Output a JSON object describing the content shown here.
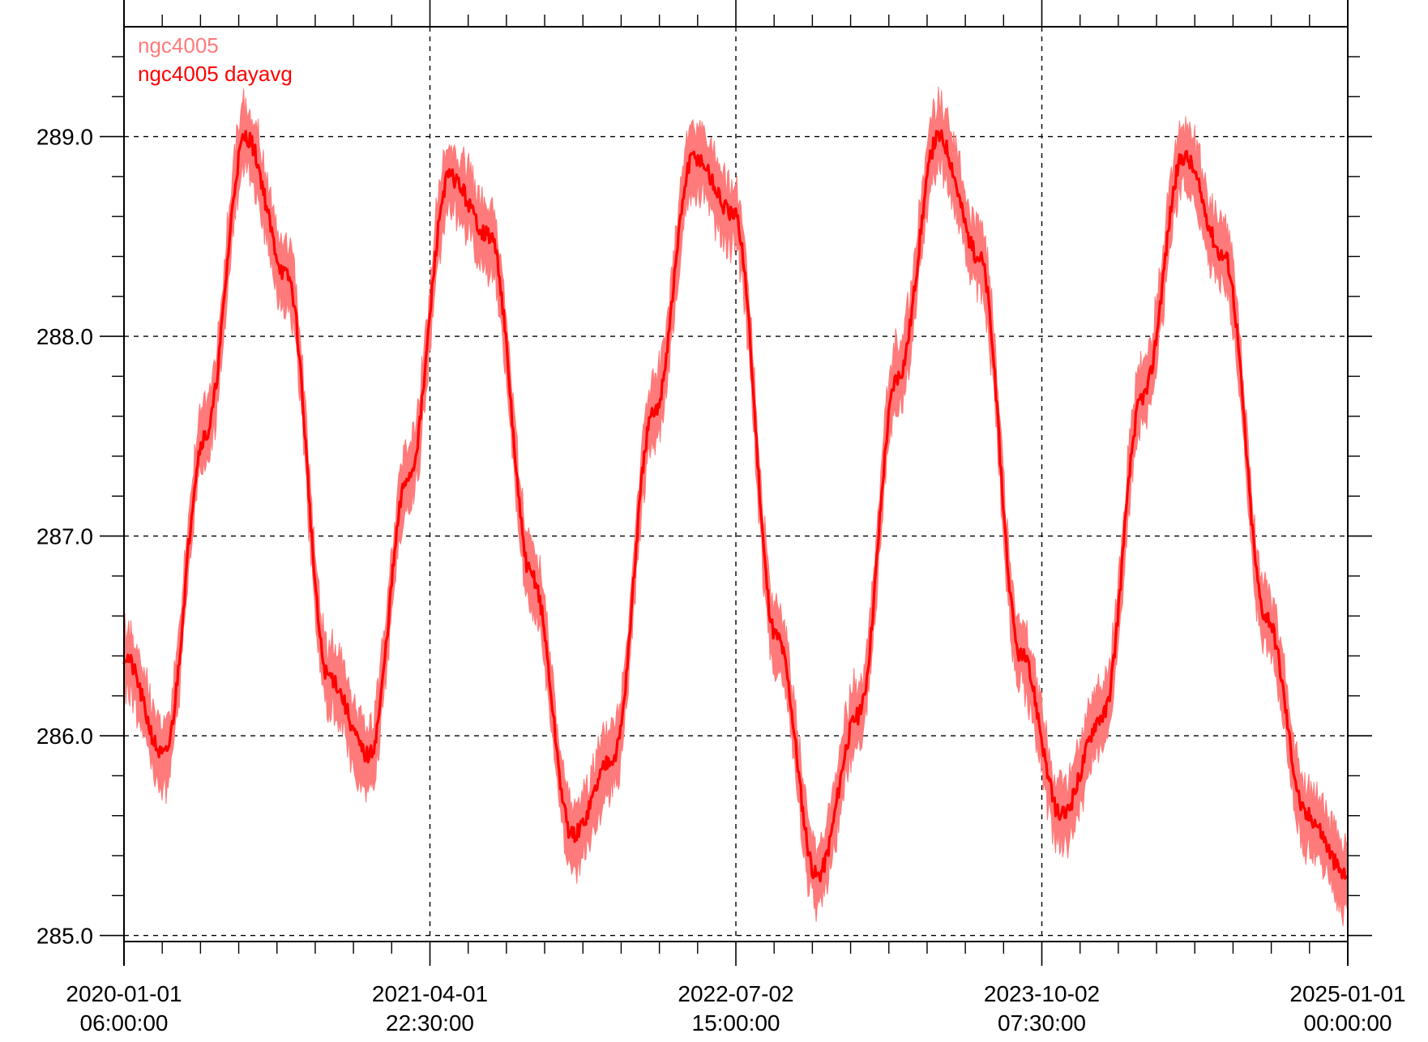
{
  "chart_data": {
    "type": "line",
    "title": "",
    "xlabel": "",
    "ylabel": "",
    "grid": true,
    "legend_placement": "top-left",
    "ylim": [
      284.97,
      289.55
    ],
    "xlim": [
      "2020-01-01 06:00:00",
      "2025-01-01 00:00:00"
    ],
    "y_ticks": [
      "285.0",
      "286.0",
      "287.0",
      "288.0",
      "289.0"
    ],
    "x_ticks": [
      {
        "date": "2020-01-01",
        "time": "06:00:00"
      },
      {
        "date": "2021-04-01",
        "time": "22:30:00"
      },
      {
        "date": "2022-07-02",
        "time": "15:00:00"
      },
      {
        "date": "2023-10-02",
        "time": "07:30:00"
      },
      {
        "date": "2025-01-01",
        "time": "00:00:00"
      }
    ],
    "series": [
      {
        "name": "ngc4005",
        "color": "#ff7a7a",
        "band_halfwidth": 0.16,
        "x": [
          "2020-01-01",
          "2020-03-01",
          "2020-05-01",
          "2020-07-01",
          "2020-09-01",
          "2020-11-01",
          "2021-01-01",
          "2021-03-01",
          "2021-05-01",
          "2021-07-01",
          "2021-09-01",
          "2021-11-01",
          "2022-01-01",
          "2022-03-01",
          "2022-05-01",
          "2022-07-01",
          "2022-09-01",
          "2022-11-01",
          "2023-01-01",
          "2023-03-01",
          "2023-05-01",
          "2023-07-01",
          "2023-09-01",
          "2023-11-01",
          "2024-01-01",
          "2024-03-01",
          "2024-05-01",
          "2024-07-01",
          "2024-09-01",
          "2024-11-01",
          "2024-12-31"
        ],
        "values": [
          286.4,
          285.9,
          287.5,
          289.0,
          288.3,
          286.3,
          285.9,
          287.3,
          288.8,
          288.5,
          286.8,
          285.5,
          285.9,
          287.6,
          288.9,
          288.6,
          286.5,
          285.3,
          286.1,
          287.8,
          289.0,
          288.4,
          286.4,
          285.6,
          286.1,
          287.7,
          288.9,
          288.4,
          286.6,
          285.6,
          285.3
        ]
      },
      {
        "name": "ngc4005 dayavg",
        "color": "#ff0000",
        "x": [
          "2020-01-01",
          "2020-03-01",
          "2020-05-01",
          "2020-07-01",
          "2020-09-01",
          "2020-11-01",
          "2021-01-01",
          "2021-03-01",
          "2021-05-01",
          "2021-07-01",
          "2021-09-01",
          "2021-11-01",
          "2022-01-01",
          "2022-03-01",
          "2022-05-01",
          "2022-07-01",
          "2022-09-01",
          "2022-11-01",
          "2023-01-01",
          "2023-03-01",
          "2023-05-01",
          "2023-07-01",
          "2023-09-01",
          "2023-11-01",
          "2024-01-01",
          "2024-03-01",
          "2024-05-01",
          "2024-07-01",
          "2024-09-01",
          "2024-11-01",
          "2024-12-31"
        ],
        "values": [
          286.4,
          285.9,
          287.5,
          289.0,
          288.3,
          286.3,
          285.9,
          287.3,
          288.8,
          288.5,
          286.8,
          285.5,
          285.9,
          287.6,
          288.9,
          288.6,
          286.5,
          285.3,
          286.1,
          287.8,
          289.0,
          288.4,
          286.4,
          285.6,
          286.1,
          287.7,
          288.9,
          288.4,
          286.6,
          285.6,
          285.3
        ]
      }
    ]
  }
}
